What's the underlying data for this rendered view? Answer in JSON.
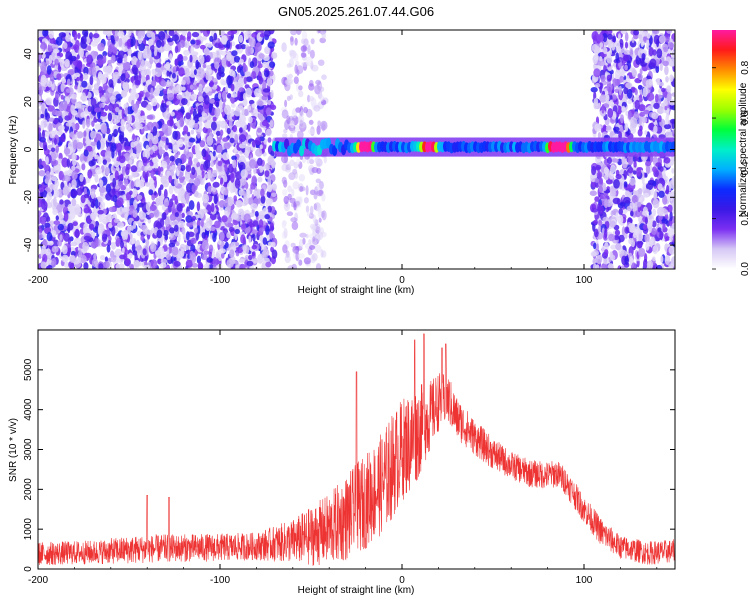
{
  "figure": {
    "title": "GN05.2025.261.07.44.G06"
  },
  "chart_data": [
    {
      "type": "heatmap",
      "xlabel": "Height of straight line (km)",
      "ylabel": "Frequency (Hz)",
      "xlim": [
        -200,
        150
      ],
      "ylim": [
        -50,
        50
      ],
      "xticks": [
        -200,
        -100,
        0,
        100
      ],
      "yticks": [
        -40,
        -20,
        0,
        20,
        40
      ],
      "colorbar": {
        "label": "Normalized spectral amplitude",
        "range": [
          0,
          0.95
        ],
        "ticks": [
          0.0,
          0.2,
          0.4,
          0.6,
          0.8
        ],
        "colors": [
          "#ffffff",
          "#d6c8f5",
          "#7b2ff2",
          "#3a18e6",
          "#0b2bff",
          "#00b0ff",
          "#00f0c8",
          "#00ff3a",
          "#9cff00",
          "#ffff00",
          "#ff8c00",
          "#ff1a1a",
          "#ff1aa0"
        ]
      },
      "noise_regions": [
        {
          "x": [
            -200,
            -70
          ],
          "y": [
            -50,
            50
          ],
          "density": "high"
        },
        {
          "x": [
            -65,
            -42
          ],
          "y": [
            -50,
            50
          ],
          "density": "medium"
        },
        {
          "x": [
            105,
            150
          ],
          "y": [
            -50,
            50
          ],
          "density": "high"
        }
      ],
      "signal_band": {
        "center_frequency": 1,
        "half_width": 2.5,
        "x_range": [
          -70,
          150
        ],
        "peaks": [
          {
            "x": -20,
            "amplitude": 0.9
          },
          {
            "x": 15,
            "amplitude": 0.85
          },
          {
            "x": 85,
            "amplitude": 0.92
          },
          {
            "x": 88,
            "amplitude": 0.95
          }
        ]
      }
    },
    {
      "type": "line",
      "xlabel": "Height of straight line (km)",
      "ylabel": "SNR (10 * v/v)",
      "xlim": [
        -200,
        150
      ],
      "ylim": [
        0,
        6000
      ],
      "xticks": [
        -200,
        -100,
        0,
        100
      ],
      "yticks": [
        0,
        1000,
        2000,
        3000,
        4000,
        5000
      ],
      "color": "#ee3333",
      "envelope": {
        "x": [
          -200,
          -170,
          -150,
          -130,
          -100,
          -80,
          -60,
          -50,
          -40,
          -30,
          -20,
          -10,
          -5,
          0,
          5,
          10,
          15,
          20,
          25,
          30,
          40,
          50,
          60,
          70,
          80,
          85,
          90,
          100,
          110,
          120,
          135,
          150
        ],
        "mean": [
          380,
          420,
          480,
          520,
          540,
          570,
          700,
          820,
          1000,
          1300,
          1700,
          2200,
          2600,
          3000,
          3200,
          3500,
          3800,
          4200,
          4300,
          3800,
          3300,
          2900,
          2600,
          2400,
          2350,
          2400,
          2200,
          1500,
          900,
          550,
          400,
          450
        ],
        "spread": [
          600,
          600,
          700,
          700,
          700,
          700,
          1100,
          1500,
          1800,
          2200,
          2400,
          2600,
          2700,
          2600,
          2600,
          2300,
          1800,
          1500,
          1300,
          1100,
          900,
          800,
          700,
          700,
          700,
          700,
          700,
          700,
          700,
          600,
          600,
          600
        ]
      },
      "spikes": [
        {
          "x": -140,
          "y": 1850
        },
        {
          "x": -128,
          "y": 1800
        },
        {
          "x": -25,
          "y": 4950
        },
        {
          "x": 7,
          "y": 5750
        },
        {
          "x": 12,
          "y": 5900
        },
        {
          "x": 22,
          "y": 5550
        },
        {
          "x": 24,
          "y": 5650
        }
      ]
    }
  ]
}
